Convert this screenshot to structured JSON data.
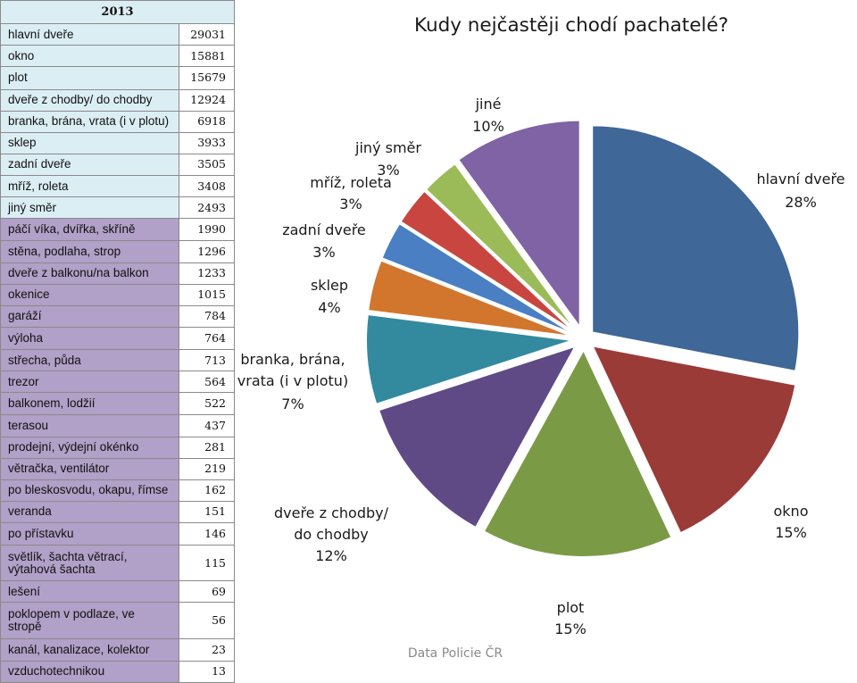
{
  "table": {
    "year": "2013",
    "rows": [
      {
        "label": "hlavní dveře",
        "value": "29031"
      },
      {
        "label": "okno",
        "value": "15881"
      },
      {
        "label": "plot",
        "value": "15679"
      },
      {
        "label": "dveře z chodby/ do chodby",
        "value": "12924"
      },
      {
        "label": "branka, brána, vrata (i v plotu)",
        "value": "6918"
      },
      {
        "label": "sklep",
        "value": "3933"
      },
      {
        "label": "zadní dveře",
        "value": "3505"
      },
      {
        "label": "mříž, roleta",
        "value": "3408"
      },
      {
        "label": "jiný směr",
        "value": "2493"
      },
      {
        "label": "páčí víka, dvířka, skříně",
        "value": "1990"
      },
      {
        "label": "stěna, podlaha, strop",
        "value": "1296"
      },
      {
        "label": "dveře z balkonu/na balkon",
        "value": "1233"
      },
      {
        "label": "okenice",
        "value": "1015"
      },
      {
        "label": "garáží",
        "value": "784"
      },
      {
        "label": "výloha",
        "value": "764"
      },
      {
        "label": "střecha, půda",
        "value": "713"
      },
      {
        "label": "trezor",
        "value": "564"
      },
      {
        "label": "balkonem, lodžií",
        "value": "522"
      },
      {
        "label": "terasou",
        "value": "437"
      },
      {
        "label": "prodejní, výdejní okénko",
        "value": "281"
      },
      {
        "label": "větračka, ventilátor",
        "value": "219"
      },
      {
        "label": "po bleskosvodu, okapu, římse",
        "value": "162"
      },
      {
        "label": "veranda",
        "value": "151"
      },
      {
        "label": "po přístavku",
        "value": "146"
      },
      {
        "label": "světlík, šachta větrací, výtahová šachta",
        "value": "115"
      },
      {
        "label": "lešení",
        "value": "69"
      },
      {
        "label": "poklopem v podlaze, ve stropě",
        "value": "56"
      },
      {
        "label": "kanál, kanalizace, kolektor",
        "value": "23"
      },
      {
        "label": "vzduchotechnikou",
        "value": "13"
      }
    ]
  },
  "chart_data": {
    "type": "pie",
    "title": "Kudy nejčastěji chodí pachatelé?",
    "source": "Data Policie ČR",
    "slices": [
      {
        "label": "hlavní dveře",
        "percent": "28%",
        "value": 28,
        "color": "#3f6797"
      },
      {
        "label": "okno",
        "percent": "15%",
        "value": 15,
        "color": "#9a3b38"
      },
      {
        "label": "plot",
        "percent": "15%",
        "value": 15,
        "color": "#7b9a46"
      },
      {
        "label": "dveře z chodby/ do chodby",
        "percent": "12%",
        "value": 12,
        "color": "#5f4a86"
      },
      {
        "label": "branka, brána, vrata (i v plotu)",
        "percent": "7%",
        "value": 7,
        "color": "#338a9e"
      },
      {
        "label": "sklep",
        "percent": "4%",
        "value": 4,
        "color": "#d2762d"
      },
      {
        "label": "zadní dveře",
        "percent": "3%",
        "value": 3,
        "color": "#4a7fc4"
      },
      {
        "label": "mříž, roleta",
        "percent": "3%",
        "value": 3,
        "color": "#c8463f"
      },
      {
        "label": "jiný směr",
        "percent": "3%",
        "value": 3,
        "color": "#9bbb59"
      },
      {
        "label": "jiné",
        "percent": "10%",
        "value": 10,
        "color": "#7f63a4"
      }
    ]
  },
  "colors": {
    "row_blue": "#dbeef4",
    "row_purple": "#b1a0c7",
    "row_white": "#ffffff"
  }
}
